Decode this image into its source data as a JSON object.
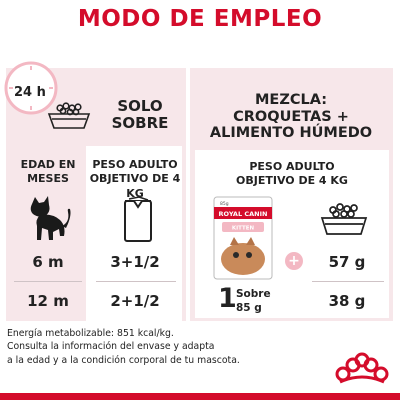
{
  "title": "MODO DE EMPLEO",
  "clock": {
    "label": "24 h"
  },
  "solo": {
    "heading_line1": "SOLO",
    "heading_line2": "SOBRE"
  },
  "mezcla": {
    "heading_line1": "MEZCLA:",
    "heading_line2": "CROQUETAS +",
    "heading_line3": "ALIMENTO HÚMEDO"
  },
  "columns": {
    "edad_line1": "EDAD EN",
    "edad_line2": "MESES",
    "peso_solo_line1": "PESO ADULTO",
    "peso_solo_line2": "OBJETIVO DE 4 KG",
    "peso_mezcla_line1": "PESO ADULTO",
    "peso_mezcla_line2": "OBJETIVO DE 4 KG"
  },
  "rows": [
    {
      "edad": "6 m",
      "solo_sobres": "3+1/2",
      "croquetas": "57 g"
    },
    {
      "edad": "12 m",
      "solo_sobres": "2+1/2",
      "croquetas": "38 g"
    }
  ],
  "mezcla_sobre": {
    "count": "1",
    "unit": "Sobre",
    "weight": "85 g"
  },
  "pouch": {
    "brand": "ROYAL CANIN",
    "variant": "KITTEN",
    "weight_tag": "85g"
  },
  "plus_symbol": "+",
  "footer": {
    "line1": "Energía metabolizable: 851 kcal/kg.",
    "line2": "Consulta la información del envase y adapta",
    "line3": "a la edad y a la condición corporal de tu mascota."
  },
  "colors": {
    "brand_red": "#d40c2b",
    "panel_pink": "#f7e7ea",
    "accent_pink": "#f3b8c3",
    "text": "#222222"
  },
  "icons": [
    "clock-icon",
    "food-bowl-icon",
    "kitten-icon",
    "pouch-icon",
    "product-pouch-icon",
    "kibble-bowl-icon",
    "plus-icon",
    "royal-canin-crown-icon"
  ]
}
